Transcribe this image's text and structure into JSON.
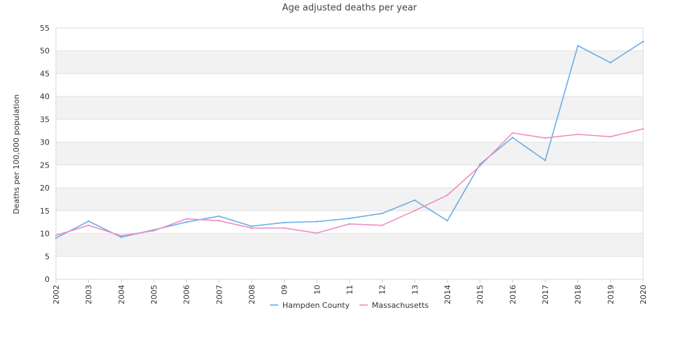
{
  "chart_data": {
    "type": "line",
    "title": "Age adjusted deaths per year",
    "ylabel": "Deaths per 100,000 population",
    "xlabel": "",
    "categories": [
      "2002",
      "2003",
      "2004",
      "2005",
      "2006",
      "2007",
      "2008",
      "09",
      "10",
      "11",
      "12",
      "13",
      "2014",
      "2015",
      "2016",
      "2017",
      "2018",
      "2019",
      "2020"
    ],
    "ylim": [
      0,
      55
    ],
    "yticks": [
      0,
      5,
      10,
      15,
      20,
      25,
      30,
      35,
      40,
      45,
      50,
      55
    ],
    "grid": "horizontal alternating bands",
    "legend": "bottom-center",
    "series": [
      {
        "name": "Hampden County",
        "color": "#6aaee8",
        "values": [
          9.0,
          12.7,
          9.2,
          10.8,
          12.5,
          13.8,
          11.6,
          12.4,
          12.6,
          13.3,
          14.4,
          17.3,
          12.8,
          25.2,
          31.0,
          26.0,
          51.1,
          47.4,
          52.0
        ]
      },
      {
        "name": "Massachusetts",
        "color": "#f08cc4",
        "values": [
          9.6,
          11.8,
          9.5,
          10.6,
          13.2,
          12.8,
          11.2,
          11.2,
          10.1,
          12.1,
          11.8,
          15.0,
          18.4,
          24.8,
          32.0,
          30.9,
          31.7,
          31.2,
          32.9
        ]
      }
    ]
  }
}
